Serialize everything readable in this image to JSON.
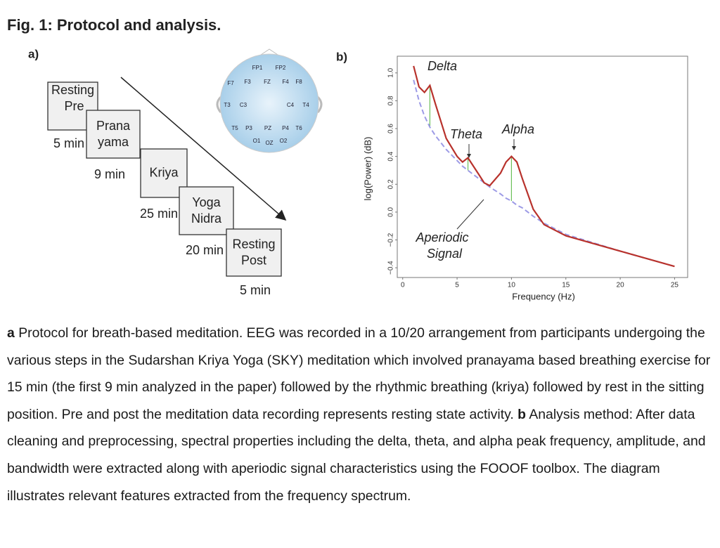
{
  "figure_title": "Fig. 1: Protocol and analysis.",
  "panel_a": {
    "label": "a)",
    "steps": [
      {
        "lines": [
          "Resting",
          "Pre"
        ],
        "duration": "5 min"
      },
      {
        "lines": [
          "Prana",
          "yama"
        ],
        "duration": "9 min"
      },
      {
        "lines": [
          "Kriya"
        ],
        "duration": "25 min"
      },
      {
        "lines": [
          "Yoga",
          "Nidra"
        ],
        "duration": "20 min"
      },
      {
        "lines": [
          "Resting",
          "Post"
        ],
        "duration": "5 min"
      }
    ],
    "electrodes": [
      "FP1",
      "FP2",
      "F7",
      "F3",
      "FZ",
      "F4",
      "F8",
      "T3",
      "C3",
      "C4",
      "T4",
      "T5",
      "P3",
      "PZ",
      "P4",
      "T6",
      "O1",
      "OZ",
      "O2"
    ]
  },
  "panel_b": {
    "label": "b)"
  },
  "chart_data": {
    "type": "line",
    "xlabel": "Frequency (Hz)",
    "ylabel": "log(Power) (dB)",
    "x": [
      1,
      1.5,
      2,
      2.5,
      3,
      4,
      5,
      5.5,
      6,
      7,
      7.5,
      8,
      9,
      9.5,
      10,
      10.5,
      11,
      12,
      13,
      15,
      20,
      25
    ],
    "series": [
      {
        "color": "#b8322c",
        "dash": false,
        "values": [
          1.05,
          0.9,
          0.86,
          0.91,
          0.78,
          0.53,
          0.4,
          0.36,
          0.39,
          0.27,
          0.21,
          0.19,
          0.28,
          0.36,
          0.4,
          0.36,
          0.24,
          0.02,
          -0.09,
          -0.17,
          -0.28,
          -0.39
        ]
      },
      {
        "color": "#9d9be6",
        "dash": true,
        "values": [
          0.95,
          0.8,
          0.69,
          0.61,
          0.55,
          0.45,
          0.37,
          0.33,
          0.3,
          0.24,
          0.21,
          0.18,
          0.13,
          0.1,
          0.08,
          0.05,
          0.03,
          -0.03,
          -0.08,
          -0.16,
          -0.28,
          -0.39
        ]
      }
    ],
    "xlim": [
      -0.5,
      26.2
    ],
    "ylim": [
      -0.47,
      1.12
    ],
    "xticks": [
      0,
      5,
      10,
      15,
      20,
      25
    ],
    "yticks": [
      {
        "value": -0.4,
        "label": "−0.4"
      },
      {
        "value": -0.2,
        "label": "−0.2"
      },
      {
        "value": 0,
        "label": "0.0"
      },
      0.2,
      0.4,
      0.6,
      0.8,
      {
        "value": 1,
        "label": "1.0"
      }
    ],
    "annotations": {
      "delta": "Delta",
      "theta": "Theta",
      "alpha": "Alpha",
      "aperiodic": [
        "Aperiodic",
        "Signal"
      ]
    }
  },
  "caption": {
    "a_label": "a",
    "a_text": "Protocol for breath-based meditation. EEG was recorded in a 10/20 arrangement from participants undergoing the various steps in the Sudarshan Kriya Yoga (SKY) meditation which involved pranayama based breathing exercise for 15 min (the first 9 min analyzed in the paper) followed by the rhythmic breathing (kriya) followed by rest in the sitting position. Pre and post the meditation data recording represents resting state activity.",
    "b_label": "b",
    "b_text": "Analysis method: After data cleaning and preprocessing, spectral properties including the delta, theta, and alpha peak frequency, amplitude, and bandwidth were extracted along with aperiodic signal characteristics using the FOOOF toolbox. The diagram illustrates relevant features extracted from the frequency spectrum."
  }
}
